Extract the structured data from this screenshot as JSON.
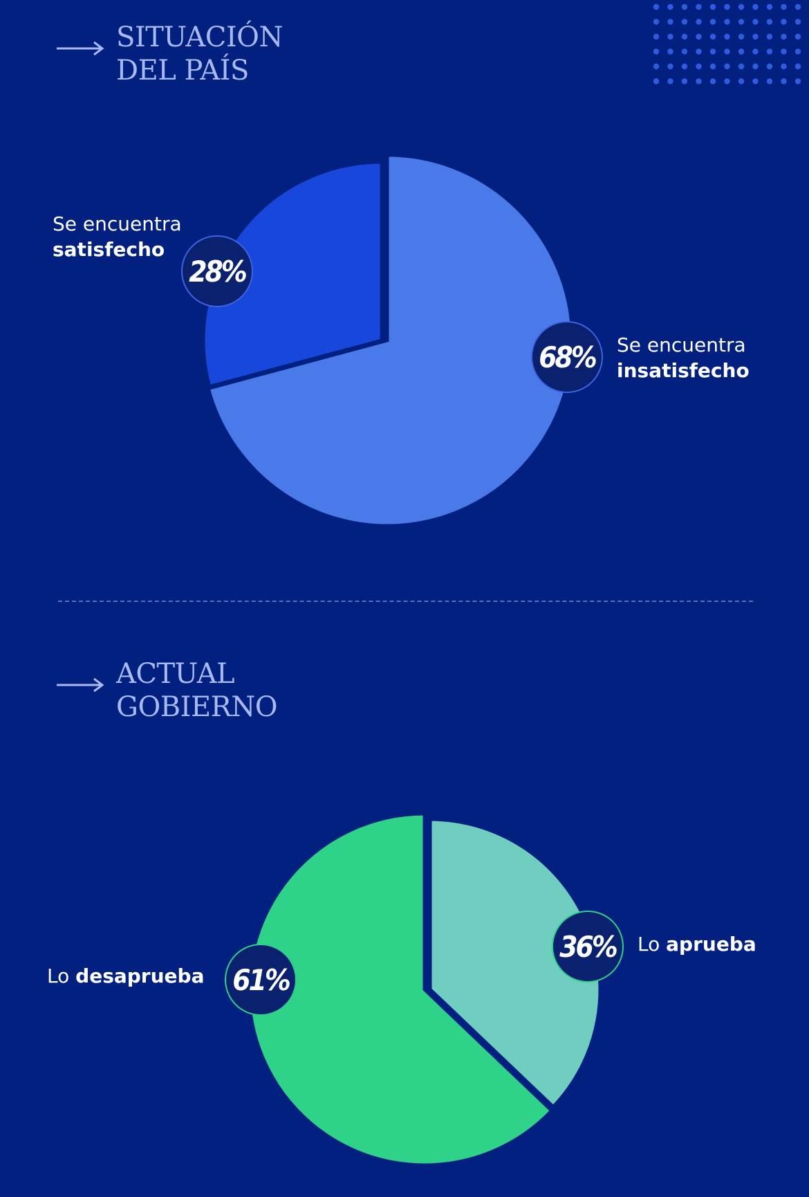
{
  "decor": {
    "dot_color": "#2E5BE0"
  },
  "chart_data": [
    {
      "type": "pie",
      "title": "SITUACIÓN DEL PAÍS",
      "title_lines": [
        "SITUACIÓN",
        "DEL PAÍS"
      ],
      "slices": [
        {
          "label_top": "Se encuentra",
          "label_bold": "satisfecho",
          "value": 28,
          "display": "28%",
          "color": "#1847DB"
        },
        {
          "label_top": "Se encuentra",
          "label_bold": "insatisfecho",
          "value": 68,
          "display": "68%",
          "color": "#4A79E9"
        }
      ]
    },
    {
      "type": "pie",
      "title": "ACTUAL GOBIERNO",
      "title_lines": [
        "ACTUAL",
        "GOBIERNO"
      ],
      "slices": [
        {
          "label_prefix": "Lo",
          "label_bold": "aprueba",
          "value": 36,
          "display": "36%",
          "color": "#6FCEC0"
        },
        {
          "label_prefix": "Lo",
          "label_bold": "desaprueba",
          "value": 61,
          "display": "61%",
          "color": "#2ED389"
        }
      ]
    }
  ]
}
